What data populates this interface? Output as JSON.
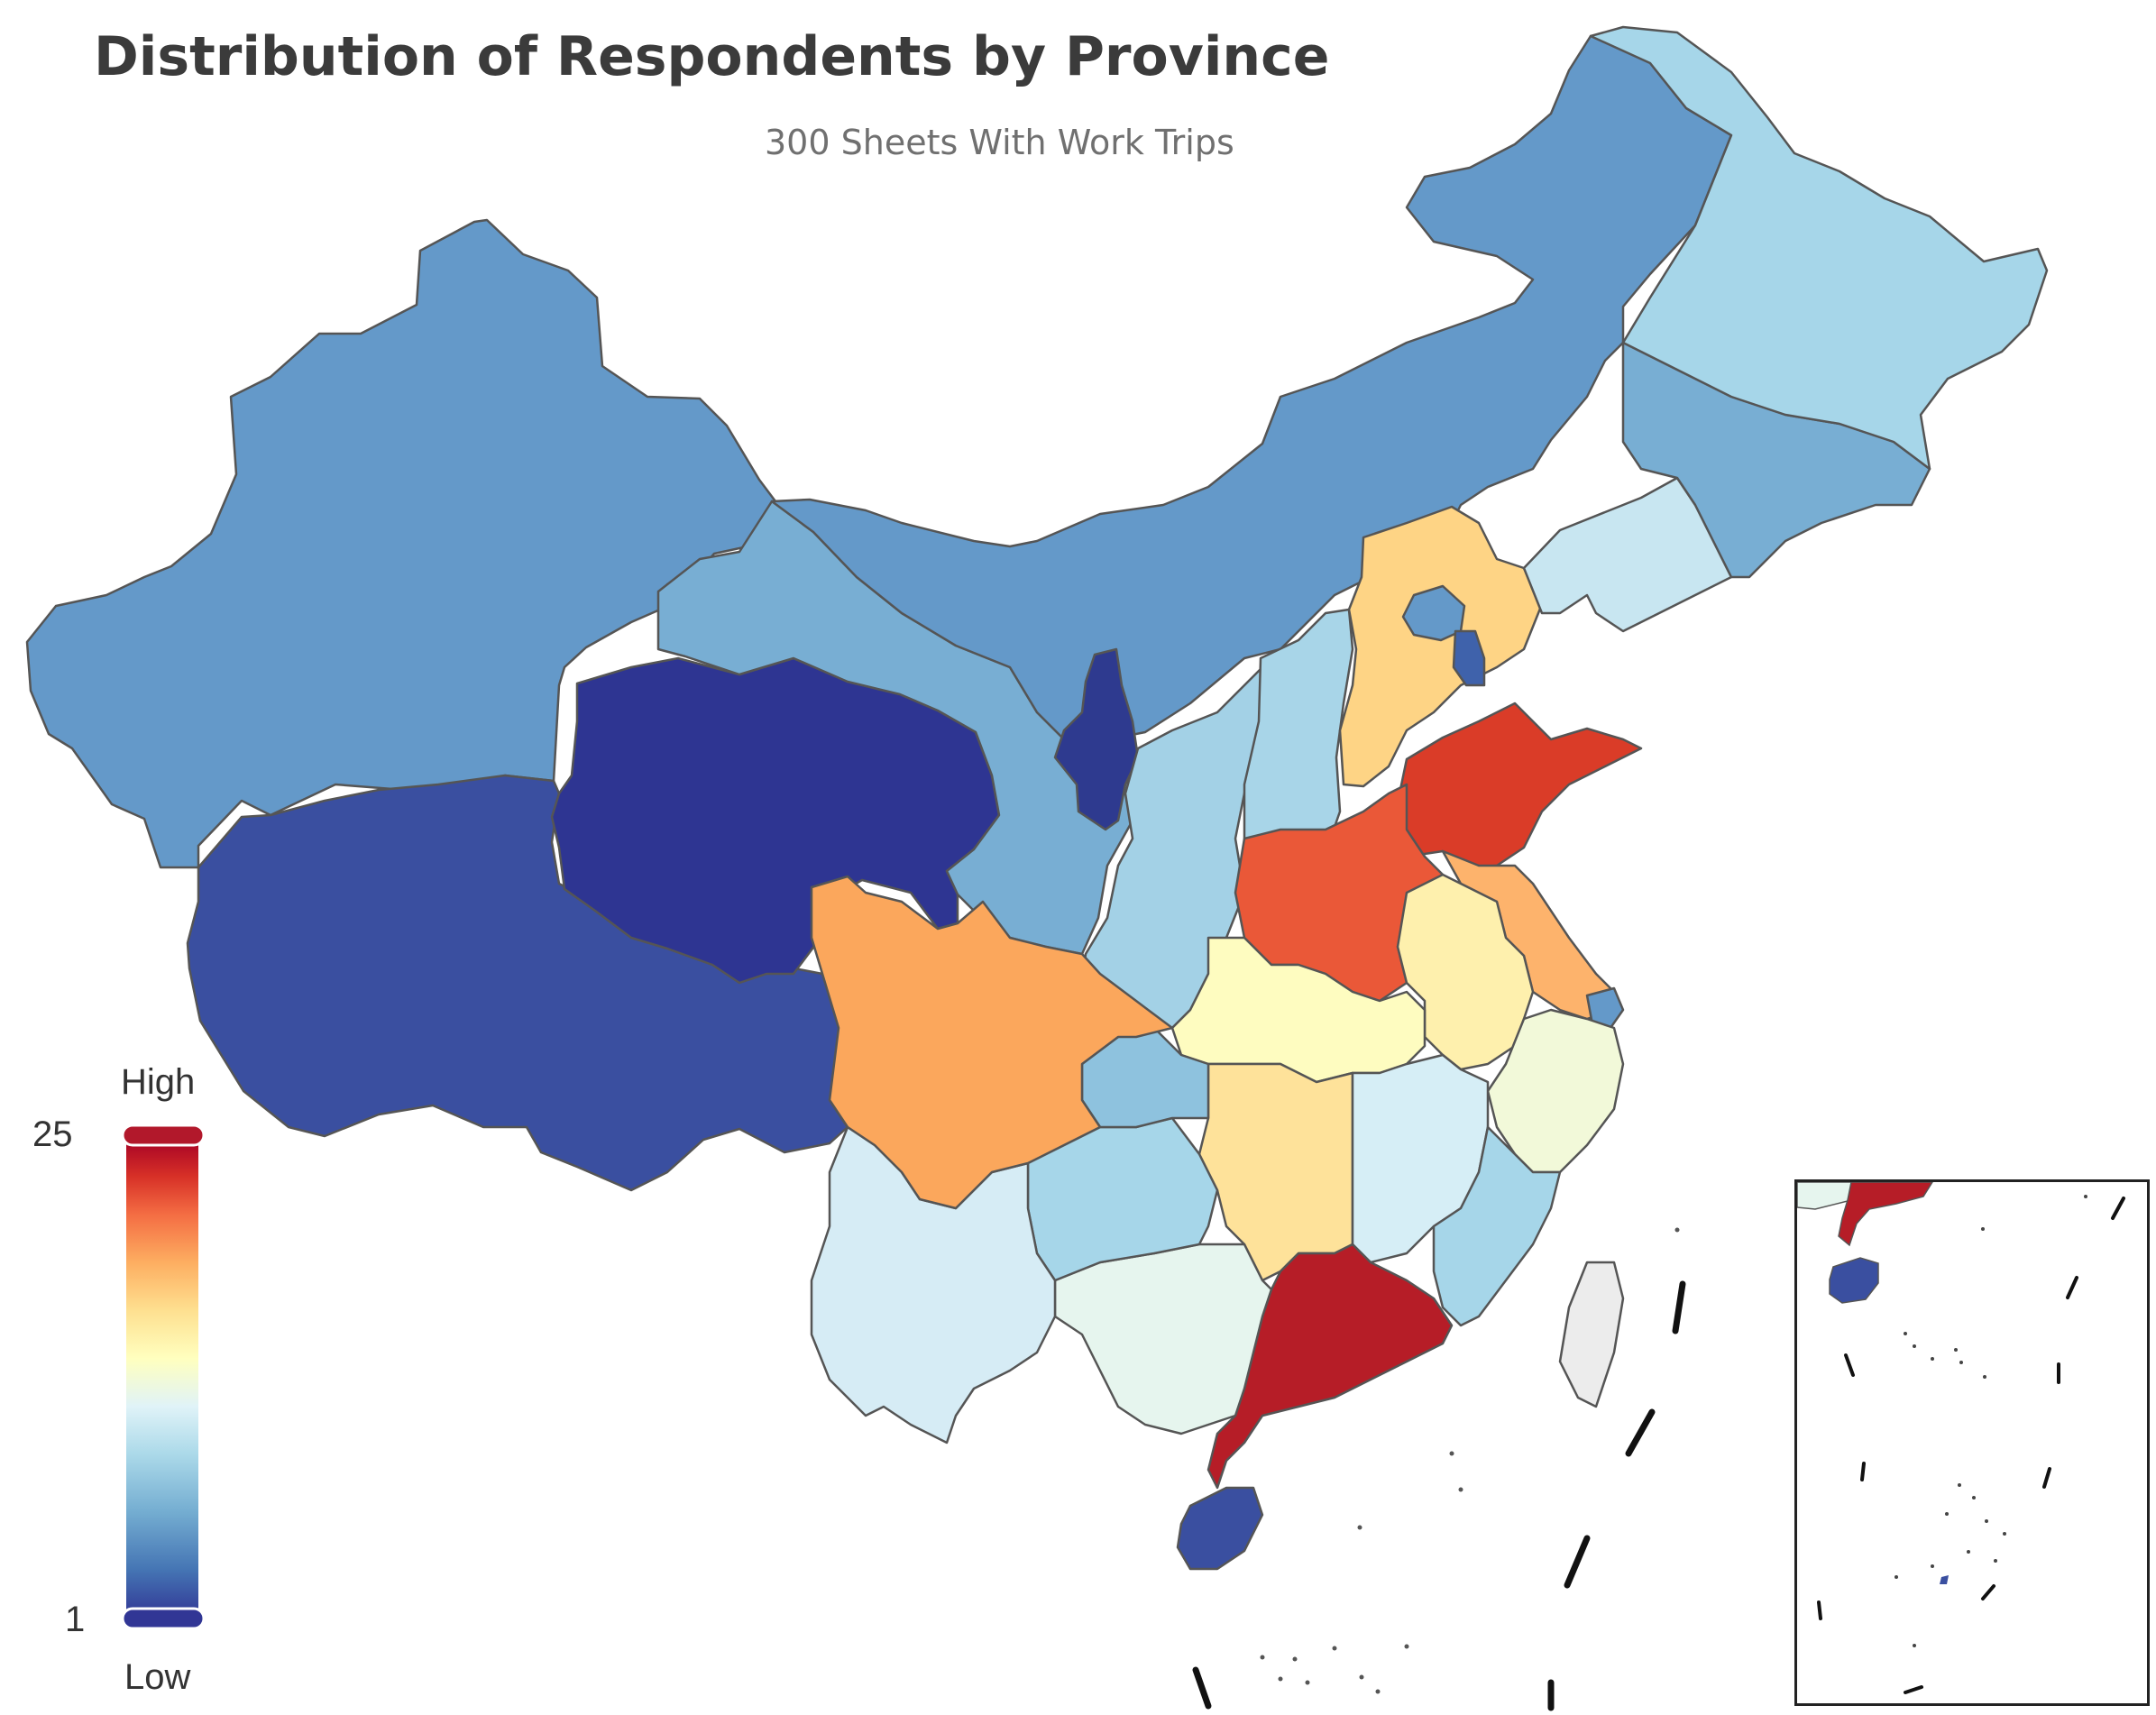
{
  "title": "Distribution of Respondents by Province",
  "subtitle": "300 Sheets With Work Trips",
  "legend": {
    "high_label": "High",
    "low_label": "Low",
    "max": 25,
    "min": 1,
    "gradient": [
      "#313695",
      "#4575b4",
      "#74add1",
      "#abd9e9",
      "#e0f3f8",
      "#ffffbf",
      "#fee090",
      "#fdae61",
      "#f46d43",
      "#d73027",
      "#a50026"
    ]
  },
  "colors": {
    "xinjiang": "#6499c9",
    "tibet": "#3a4fa0",
    "qinghai": "#2e3592",
    "gansu": "#78aed3",
    "inner_mongolia": "#6499c9",
    "ningxia": "#2e3a8f",
    "shaanxi": "#a3d1e6",
    "shanxi": "#a8d5e8",
    "hebei": "#fed485",
    "beijing": "#6499c9",
    "tianjin": "#3f62ab",
    "shandong": "#da3c28",
    "henan": "#ea5838",
    "jiangsu": "#fdb36c",
    "anhui": "#fef0ad",
    "shanghai": "#6499c9",
    "zhejiang": "#f2f9d9",
    "hubei": "#fefcc0",
    "hunan": "#fee29a",
    "jiangxi": "#d6eef6",
    "fujian": "#a6d6e9",
    "guangdong": "#b61d27",
    "hainan": "#3a4fa0",
    "guangxi": "#e6f5ee",
    "guizhou": "#a6d6e9",
    "yunnan": "#d6ecf5",
    "sichuan": "#fba75c",
    "chongqing": "#8ec2de",
    "liaoning": "#c8e6f1",
    "jilin": "#78aed3",
    "heilongjiang": "#a6d6e9",
    "taiwan": "#ececec"
  }
}
